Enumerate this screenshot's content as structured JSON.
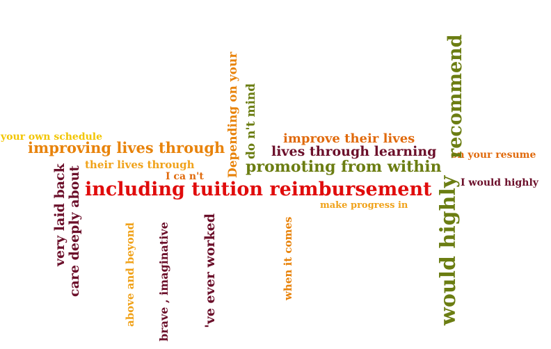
{
  "colors": {
    "yellow": "#f2c500",
    "orange": "#e8830b",
    "dark_orange": "#e06a0c",
    "red": "#e00c0c",
    "maroon": "#6b0f2a",
    "olive": "#6b7d12",
    "light_orange": "#f0a21a"
  },
  "phrases": {
    "your_own_schedule": "your own schedule",
    "improving_lives_through": "improving lives through",
    "their_lives_through": "their lives through",
    "i_cant": "I ca n't",
    "including_tuition": "including tuition reimbursement",
    "improve_their_lives": "improve their lives",
    "lives_through_learning": "lives through learning",
    "promoting_from_within": "promoting from within",
    "make_progress_in": "make progress in",
    "on_your_resume": "on your resume",
    "i_would_highly": "I would highly",
    "very_laid_back": "very laid back",
    "care_deeply_about": "care deeply about",
    "above_and_beyond": "above and beyond",
    "brave_imaginative": "brave , imaginative",
    "ve_ever_worked": "'ve ever worked",
    "depending_on_your": "Depending on your",
    "dont_mind": "do n't mind",
    "when_it_comes": "when it comes",
    "would_highly": "would highly",
    "recommend": "recommend"
  }
}
